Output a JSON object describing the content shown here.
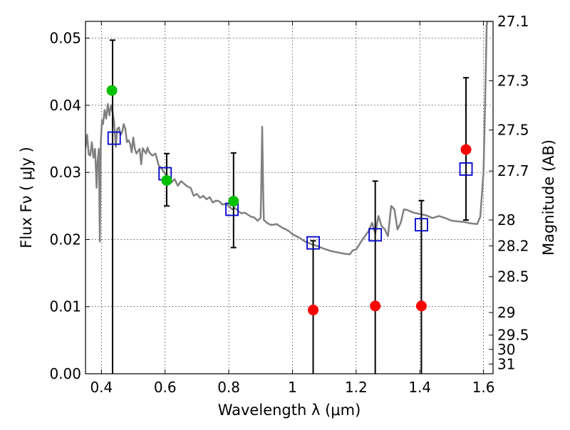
{
  "chart_data": {
    "type": "scatter",
    "title": "",
    "xlabel": "Wavelength  λ (μm)",
    "ylabel": "Flux  Fν  ( μJy )",
    "ylabel_right": "Magnitude (AB)",
    "xlim": [
      0.35,
      1.63
    ],
    "ylim": [
      0,
      0.0525
    ],
    "grid": true,
    "x_ticks": [
      {
        "v": 0.4,
        "label": "0.4"
      },
      {
        "v": 0.6,
        "label": "0.6"
      },
      {
        "v": 0.8,
        "label": "0.8"
      },
      {
        "v": 1.0,
        "label": "1"
      },
      {
        "v": 1.2,
        "label": "1.2"
      },
      {
        "v": 1.4,
        "label": "1.4"
      },
      {
        "v": 1.6,
        "label": "1.6"
      }
    ],
    "y_ticks": [
      {
        "v": 0.0,
        "label": "0.00"
      },
      {
        "v": 0.01,
        "label": "0.01"
      },
      {
        "v": 0.02,
        "label": "0.02"
      },
      {
        "v": 0.03,
        "label": "0.03"
      },
      {
        "v": 0.04,
        "label": "0.04"
      },
      {
        "v": 0.05,
        "label": "0.05"
      }
    ],
    "right_ticks": [
      {
        "mag": 27.1,
        "label": "27.1"
      },
      {
        "mag": 27.3,
        "label": "27.3"
      },
      {
        "mag": 27.5,
        "label": "27.5"
      },
      {
        "mag": 27.7,
        "label": "27.7"
      },
      {
        "mag": 28.0,
        "label": "28"
      },
      {
        "mag": 28.2,
        "label": "28.2"
      },
      {
        "mag": 28.5,
        "label": "28.5"
      },
      {
        "mag": 29.0,
        "label": "29"
      },
      {
        "mag": 29.5,
        "label": "29.5"
      },
      {
        "mag": 30.0,
        "label": "30"
      },
      {
        "mag": 31.0,
        "label": "31"
      }
    ],
    "series": [
      {
        "kind": "line",
        "color": "#808080",
        "x": [
          0.35,
          0.355,
          0.36,
          0.365,
          0.37,
          0.375,
          0.38,
          0.385,
          0.388,
          0.392,
          0.395,
          0.398,
          0.402,
          0.405,
          0.41,
          0.415,
          0.42,
          0.425,
          0.43,
          0.435,
          0.44,
          0.445,
          0.45,
          0.455,
          0.46,
          0.465,
          0.47,
          0.475,
          0.48,
          0.485,
          0.49,
          0.495,
          0.5,
          0.505,
          0.51,
          0.52,
          0.525,
          0.53,
          0.54,
          0.545,
          0.55,
          0.56,
          0.57,
          0.58,
          0.59,
          0.6,
          0.61,
          0.62,
          0.63,
          0.64,
          0.65,
          0.66,
          0.67,
          0.68,
          0.69,
          0.7,
          0.71,
          0.72,
          0.73,
          0.74,
          0.75,
          0.76,
          0.77,
          0.78,
          0.79,
          0.8,
          0.81,
          0.82,
          0.83,
          0.84,
          0.85,
          0.86,
          0.87,
          0.88,
          0.89,
          0.9,
          0.902,
          0.905,
          0.908,
          0.91,
          0.92,
          0.93,
          0.94,
          0.95,
          0.96,
          0.97,
          0.98,
          0.99,
          1.0,
          1.02,
          1.04,
          1.06,
          1.08,
          1.1,
          1.12,
          1.14,
          1.16,
          1.18,
          1.19,
          1.2,
          1.22,
          1.24,
          1.25,
          1.26,
          1.27,
          1.28,
          1.29,
          1.3,
          1.31,
          1.32,
          1.33,
          1.34,
          1.35,
          1.36,
          1.38,
          1.4,
          1.42,
          1.44,
          1.46,
          1.48,
          1.5,
          1.52,
          1.54,
          1.56,
          1.58,
          1.59,
          1.6,
          1.605,
          1.61,
          1.615
        ],
        "y": [
          0.0337,
          0.0356,
          0.0327,
          0.0325,
          0.0345,
          0.0322,
          0.0335,
          0.0277,
          0.0317,
          0.0335,
          0.0197,
          0.0345,
          0.0378,
          0.0372,
          0.0393,
          0.038,
          0.0402,
          0.0385,
          0.04,
          0.039,
          0.0375,
          0.0338,
          0.0365,
          0.0367,
          0.0356,
          0.036,
          0.0372,
          0.0365,
          0.0345,
          0.0348,
          0.0343,
          0.033,
          0.0352,
          0.0335,
          0.0328,
          0.0335,
          0.0312,
          0.0336,
          0.0328,
          0.0337,
          0.033,
          0.0325,
          0.0328,
          0.031,
          0.0305,
          0.0298,
          0.0292,
          0.0285,
          0.029,
          0.028,
          0.0287,
          0.0283,
          0.0279,
          0.0277,
          0.0265,
          0.0268,
          0.0262,
          0.0265,
          0.026,
          0.0263,
          0.0255,
          0.0258,
          0.0257,
          0.0252,
          0.0253,
          0.025,
          0.0245,
          0.0247,
          0.0242,
          0.0239,
          0.024,
          0.0237,
          0.0234,
          0.0233,
          0.0228,
          0.0232,
          0.028,
          0.0368,
          0.027,
          0.0229,
          0.0225,
          0.0222,
          0.0222,
          0.0223,
          0.022,
          0.0217,
          0.0215,
          0.0212,
          0.0208,
          0.0203,
          0.0197,
          0.0193,
          0.019,
          0.0186,
          0.0183,
          0.0181,
          0.0179,
          0.0178,
          0.0184,
          0.0185,
          0.02,
          0.0213,
          0.0225,
          0.0209,
          0.0235,
          0.022,
          0.0215,
          0.0205,
          0.025,
          0.0245,
          0.0215,
          0.0225,
          0.0245,
          0.0244,
          0.024,
          0.0238,
          0.0236,
          0.0232,
          0.0235,
          0.0232,
          0.0228,
          0.0227,
          0.0226,
          0.0224,
          0.0223,
          0.0234,
          0.03,
          0.04,
          0.052,
          0.053
        ]
      },
      {
        "kind": "errorbar",
        "color": "#000000",
        "x": [
          0.435,
          0.605,
          0.815,
          1.065,
          1.26,
          1.405,
          1.545
        ],
        "lo": [
          0.0,
          0.025,
          0.0188,
          0.0,
          0.0,
          0.0,
          0.0229
        ],
        "hi": [
          0.0497,
          0.0328,
          0.0329,
          0.0198,
          0.0287,
          0.0258,
          0.0441
        ]
      },
      {
        "kind": "square",
        "color": "#0000cc",
        "x": [
          0.44,
          0.6,
          0.81,
          1.065,
          1.26,
          1.405,
          1.545
        ],
        "y": [
          0.0351,
          0.0298,
          0.0245,
          0.0195,
          0.0207,
          0.0222,
          0.0305
        ]
      },
      {
        "kind": "dot",
        "color": "#00c000",
        "x": [
          0.433,
          0.605,
          0.815
        ],
        "y": [
          0.0422,
          0.0288,
          0.0257
        ]
      },
      {
        "kind": "dot",
        "color": "#ff0000",
        "x": [
          1.065,
          1.26,
          1.405,
          1.545
        ],
        "y": [
          0.0095,
          0.0101,
          0.0101,
          0.0334
        ]
      }
    ]
  }
}
